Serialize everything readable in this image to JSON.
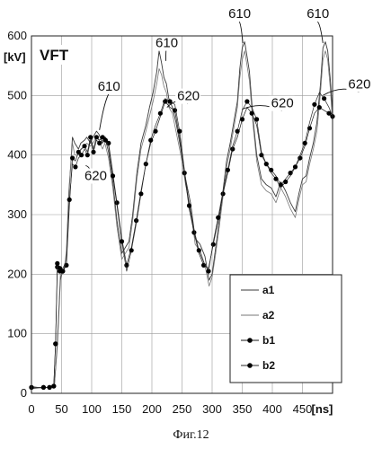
{
  "caption": "Фиг.12",
  "chart_data": {
    "type": "line",
    "title": "VFT",
    "ylabel": "[kV]",
    "xlabel": "[ns]",
    "xlim": [
      0,
      500
    ],
    "ylim": [
      0,
      600
    ],
    "xticks": [
      0,
      50,
      100,
      150,
      200,
      250,
      300,
      350,
      400,
      450
    ],
    "yticks": [
      0,
      100,
      200,
      300,
      400,
      500,
      600
    ],
    "grid": true,
    "legend_position": "bottom-right",
    "series": [
      {
        "name": "a1",
        "style": "line",
        "x": [
          0,
          20,
          30,
          38,
          43,
          48,
          52,
          55,
          58,
          62,
          68,
          72,
          78,
          82,
          88,
          92,
          98,
          102,
          108,
          112,
          118,
          122,
          128,
          135,
          142,
          150,
          156,
          162,
          168,
          175,
          182,
          190,
          196,
          202,
          208,
          212,
          216,
          220,
          224,
          228,
          234,
          240,
          248,
          256,
          264,
          272,
          280,
          288,
          295,
          300,
          306,
          312,
          318,
          324,
          330,
          336,
          342,
          346,
          350,
          354,
          358,
          362,
          368,
          374,
          382,
          390,
          398,
          406,
          414,
          422,
          430,
          438,
          444,
          450,
          456,
          462,
          468,
          474,
          480,
          484,
          488,
          492,
          496,
          500
        ],
        "y": [
          8,
          10,
          10,
          14,
          80,
          190,
          210,
          215,
          230,
          330,
          430,
          420,
          410,
          420,
          425,
          430,
          420,
          430,
          440,
          435,
          420,
          430,
          405,
          355,
          290,
          235,
          245,
          255,
          300,
          370,
          420,
          450,
          480,
          505,
          540,
          575,
          555,
          530,
          520,
          495,
          480,
          455,
          410,
          360,
          320,
          260,
          250,
          230,
          190,
          200,
          245,
          290,
          340,
          390,
          420,
          455,
          490,
          545,
          580,
          590,
          565,
          540,
          460,
          400,
          360,
          350,
          345,
          330,
          355,
          340,
          320,
          305,
          335,
          360,
          365,
          395,
          420,
          455,
          520,
          580,
          590,
          575,
          530,
          470
        ]
      },
      {
        "name": "a2",
        "style": "line",
        "x": [
          0,
          20,
          30,
          38,
          43,
          48,
          52,
          55,
          58,
          62,
          68,
          72,
          78,
          82,
          88,
          92,
          98,
          102,
          108,
          112,
          118,
          122,
          128,
          135,
          142,
          150,
          156,
          162,
          168,
          175,
          182,
          190,
          196,
          202,
          208,
          212,
          216,
          220,
          224,
          228,
          234,
          240,
          248,
          256,
          264,
          272,
          280,
          288,
          295,
          300,
          306,
          312,
          318,
          324,
          330,
          336,
          342,
          346,
          350,
          354,
          358,
          362,
          368,
          374,
          382,
          390,
          398,
          406,
          414,
          422,
          430,
          438,
          444,
          450,
          456,
          462,
          468,
          474,
          480,
          484,
          488,
          492,
          496,
          500
        ],
        "y": [
          12,
          8,
          12,
          10,
          90,
          200,
          200,
          210,
          240,
          340,
          420,
          400,
          400,
          410,
          415,
          420,
          415,
          420,
          430,
          425,
          410,
          420,
          395,
          345,
          280,
          225,
          235,
          245,
          290,
          360,
          410,
          440,
          465,
          490,
          520,
          545,
          535,
          515,
          505,
          480,
          470,
          440,
          400,
          350,
          310,
          250,
          240,
          215,
          180,
          195,
          235,
          280,
          330,
          380,
          410,
          445,
          480,
          530,
          560,
          575,
          550,
          525,
          450,
          390,
          350,
          340,
          335,
          320,
          345,
          330,
          310,
          295,
          325,
          350,
          355,
          385,
          410,
          440,
          505,
          560,
          575,
          560,
          515,
          455
        ]
      },
      {
        "name": "b1",
        "style": "line-dot",
        "x": [
          0,
          20,
          30,
          37,
          40,
          43,
          47,
          52,
          58,
          63,
          68,
          73,
          78,
          83,
          88,
          93,
          98,
          103,
          108,
          113,
          118,
          123,
          128,
          135,
          142,
          150,
          158,
          166,
          174,
          182,
          190,
          198,
          206,
          214,
          222,
          230,
          238,
          246,
          254,
          262,
          270,
          278,
          286,
          294,
          302,
          310,
          318,
          326,
          334,
          342,
          350,
          358,
          366,
          374,
          382,
          390,
          398,
          406,
          414,
          422,
          430,
          438,
          446,
          454,
          462,
          470,
          478,
          486,
          494,
          500
        ],
        "y": [
          10,
          10,
          10,
          12,
          83,
          212,
          205,
          205,
          215,
          315,
          395,
          390,
          405,
          410,
          415,
          405,
          430,
          410,
          430,
          425,
          430,
          430,
          420,
          370,
          320,
          260,
          215,
          245,
          290,
          340,
          385,
          420,
          440,
          465,
          490,
          480,
          475,
          430,
          370,
          310,
          270,
          235,
          215,
          210,
          250,
          290,
          335,
          370,
          410,
          430,
          460,
          480,
          470,
          450,
          400,
          385,
          375,
          365,
          350,
          360,
          370,
          380,
          395,
          415,
          445,
          470,
          480,
          475,
          470,
          460
        ]
      },
      {
        "name": "b2",
        "style": "line-dot",
        "x": [
          0,
          20,
          30,
          37,
          40,
          43,
          47,
          52,
          58,
          63,
          68,
          73,
          78,
          83,
          88,
          93,
          98,
          103,
          108,
          113,
          118,
          123,
          128,
          135,
          142,
          150,
          158,
          166,
          174,
          182,
          190,
          198,
          206,
          214,
          222,
          230,
          238,
          246,
          254,
          262,
          270,
          278,
          286,
          294,
          302,
          310,
          318,
          326,
          334,
          342,
          350,
          358,
          366,
          374,
          382,
          390,
          398,
          406,
          414,
          422,
          430,
          438,
          446,
          454,
          462,
          470,
          478,
          486,
          494,
          500
        ],
        "y": [
          10,
          10,
          10,
          12,
          83,
          218,
          210,
          205,
          220,
          325,
          385,
          380,
          395,
          400,
          410,
          400,
          425,
          405,
          425,
          420,
          425,
          425,
          415,
          365,
          315,
          255,
          205,
          240,
          285,
          335,
          385,
          425,
          450,
          470,
          495,
          490,
          485,
          440,
          375,
          315,
          275,
          240,
          220,
          205,
          255,
          295,
          340,
          375,
          415,
          440,
          475,
          490,
          480,
          460,
          405,
          385,
          370,
          360,
          345,
          355,
          365,
          380,
          400,
          420,
          455,
          485,
          505,
          495,
          480,
          465
        ]
      }
    ],
    "annotations": [
      {
        "text": "610",
        "x": 110,
        "y": 508,
        "target_x": 113,
        "target_y": 442
      },
      {
        "text": "620",
        "x": 88,
        "y": 358,
        "target_x": 90,
        "target_y": 382
      },
      {
        "text": "610",
        "x": 206,
        "y": 581,
        "target_x": 223,
        "target_y": 558
      },
      {
        "text": "620",
        "x": 242,
        "y": 492,
        "target_x": 225,
        "target_y": 480
      },
      {
        "text": "610",
        "x": 327,
        "y": 630,
        "target_x": 351,
        "target_y": 588
      },
      {
        "text": "620",
        "x": 398,
        "y": 480,
        "target_x": 350,
        "target_y": 477
      },
      {
        "text": "610",
        "x": 457,
        "y": 630,
        "target_x": 484,
        "target_y": 588
      },
      {
        "text": "620",
        "x": 526,
        "y": 512,
        "target_x": 484,
        "target_y": 500
      }
    ]
  }
}
